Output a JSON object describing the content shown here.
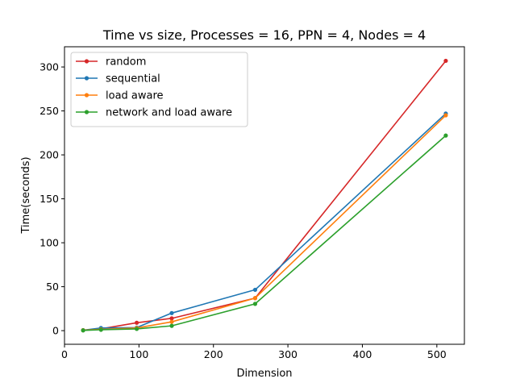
{
  "chart_data": {
    "type": "line",
    "title": "Time vs size, Processes = 16, PPN = 4, Nodes = 4",
    "xlabel": "Dimension",
    "ylabel": "Time(seconds)",
    "xlim": [
      0,
      537
    ],
    "ylim": [
      -15.5,
      323
    ],
    "xticks": [
      0,
      100,
      200,
      300,
      400,
      500
    ],
    "yticks": [
      0,
      50,
      100,
      150,
      200,
      250,
      300
    ],
    "grid": false,
    "legend": "top-left",
    "x": [
      25,
      49,
      97,
      144,
      256,
      512
    ],
    "series": [
      {
        "name": "random",
        "color": "#d62728",
        "values": [
          0.5,
          2.0,
          9.0,
          14.0,
          37.0,
          307.0
        ]
      },
      {
        "name": "sequential",
        "color": "#1f77b4",
        "values": [
          0.5,
          3.0,
          3.5,
          20.0,
          46.5,
          247.0
        ]
      },
      {
        "name": "load aware",
        "color": "#ff7f0e",
        "values": [
          0.5,
          1.5,
          3.0,
          10.0,
          37.0,
          245.0
        ]
      },
      {
        "name": "network and load aware",
        "color": "#2ca02c",
        "values": [
          0.3,
          1.0,
          2.0,
          5.5,
          30.5,
          222.0
        ]
      }
    ]
  }
}
